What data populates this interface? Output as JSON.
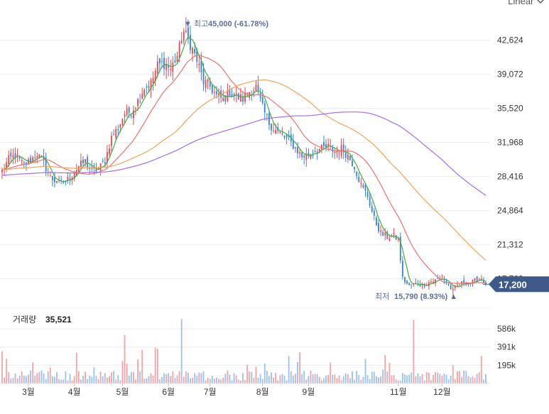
{
  "scale_toggle": {
    "label": "Linear"
  },
  "colors": {
    "up": "#e8484f",
    "down": "#3b82d9",
    "ma5": "#3cb043",
    "ma20": "#f07171",
    "ma60": "#f5a25d",
    "ma120": "#a66cf0",
    "grid": "#ededed",
    "label": "#333333",
    "accent": "#5b6e99",
    "badge": "#3f5a8a",
    "volume_up": "#f2a5a8",
    "volume_down": "#9cc2ee"
  },
  "chart_data": {
    "type": "candlestick",
    "price_axis": {
      "ticks": [
        "42,624",
        "39,072",
        "35,520",
        "31,968",
        "28,416",
        "24,864",
        "21,312",
        "17,760"
      ],
      "tick_values": [
        42624,
        39072,
        35520,
        31968,
        28416,
        24864,
        21312,
        17760
      ],
      "range": [
        15000,
        46800
      ]
    },
    "months": [
      {
        "label": "3월",
        "day": 12
      },
      {
        "label": "4월",
        "day": 33
      },
      {
        "label": "5월",
        "day": 55
      },
      {
        "label": "6월",
        "day": 76
      },
      {
        "label": "7월",
        "day": 95
      },
      {
        "label": "8월",
        "day": 119
      },
      {
        "label": "9월",
        "day": 140
      },
      {
        "label": "11월",
        "day": 181
      },
      {
        "label": "12월",
        "day": 201
      }
    ],
    "day_count": 222,
    "current": {
      "value": 17200,
      "label": "17,200"
    },
    "high": {
      "prefix": "▼ 최고",
      "value_text": "45,000 (-61.78%)",
      "value": 45000,
      "day": 84
    },
    "low": {
      "prefix": "최저",
      "value_text": "15,790 (8.93%) ▲",
      "value": 15790,
      "day": 206
    },
    "volume": {
      "label": "거래량",
      "value": "35,521",
      "ticks": [
        "586k",
        "391k",
        "195k"
      ],
      "tick_values": [
        586000,
        391000,
        195000
      ],
      "max": 760000
    },
    "close_anchors": [
      [
        0,
        29000
      ],
      [
        3,
        30200
      ],
      [
        6,
        30600
      ],
      [
        10,
        29600
      ],
      [
        13,
        30100
      ],
      [
        16,
        30800
      ],
      [
        19,
        29800
      ],
      [
        22,
        28300
      ],
      [
        26,
        27700
      ],
      [
        29,
        27900
      ],
      [
        32,
        28600
      ],
      [
        35,
        29500
      ],
      [
        38,
        30000
      ],
      [
        41,
        28900
      ],
      [
        44,
        29200
      ],
      [
        47,
        30100
      ],
      [
        50,
        32500
      ],
      [
        53,
        33500
      ],
      [
        56,
        35000
      ],
      [
        59,
        35200
      ],
      [
        62,
        36300
      ],
      [
        65,
        37700
      ],
      [
        68,
        38100
      ],
      [
        71,
        40000
      ],
      [
        74,
        40200
      ],
      [
        77,
        39600
      ],
      [
        80,
        41000
      ],
      [
        83,
        43500
      ],
      [
        86,
        42200
      ],
      [
        89,
        40500
      ],
      [
        92,
        38300
      ],
      [
        95,
        37800
      ],
      [
        98,
        36800
      ],
      [
        101,
        36400
      ],
      [
        104,
        37200
      ],
      [
        107,
        36700
      ],
      [
        110,
        36500
      ],
      [
        113,
        37300
      ],
      [
        116,
        37700
      ],
      [
        119,
        35500
      ],
      [
        122,
        34000
      ],
      [
        125,
        33200
      ],
      [
        128,
        32700
      ],
      [
        131,
        32100
      ],
      [
        134,
        31400
      ],
      [
        137,
        30500
      ],
      [
        140,
        30700
      ],
      [
        143,
        31200
      ],
      [
        146,
        31300
      ],
      [
        149,
        31500
      ],
      [
        152,
        31000
      ],
      [
        155,
        31300
      ],
      [
        158,
        30600
      ],
      [
        161,
        29500
      ],
      [
        164,
        27500
      ],
      [
        167,
        26400
      ],
      [
        170,
        24000
      ],
      [
        173,
        22500
      ],
      [
        176,
        22100
      ],
      [
        179,
        22200
      ],
      [
        181,
        21800
      ],
      [
        183,
        17800
      ],
      [
        186,
        17000
      ],
      [
        189,
        17300
      ],
      [
        192,
        17100
      ],
      [
        195,
        17400
      ],
      [
        198,
        17600
      ],
      [
        201,
        17900
      ],
      [
        204,
        17100
      ],
      [
        206,
        16500
      ],
      [
        208,
        17100
      ],
      [
        211,
        17400
      ],
      [
        214,
        17300
      ],
      [
        217,
        17700
      ],
      [
        219,
        17800
      ],
      [
        221,
        17200
      ]
    ]
  }
}
